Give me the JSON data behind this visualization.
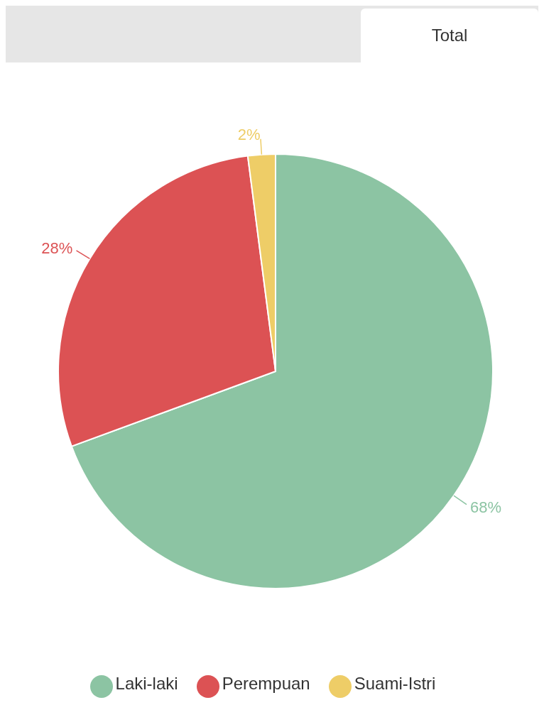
{
  "chart_data": {
    "type": "pie",
    "title": "Total",
    "categories": [
      "Laki-laki",
      "Perempuan",
      "Suami-Istri"
    ],
    "values": [
      68,
      28,
      2
    ],
    "colors": [
      "#8cc4a3",
      "#dc5254",
      "#eecd67"
    ],
    "value_labels": [
      "68%",
      "28%",
      "2%"
    ],
    "legend": "bottom"
  }
}
